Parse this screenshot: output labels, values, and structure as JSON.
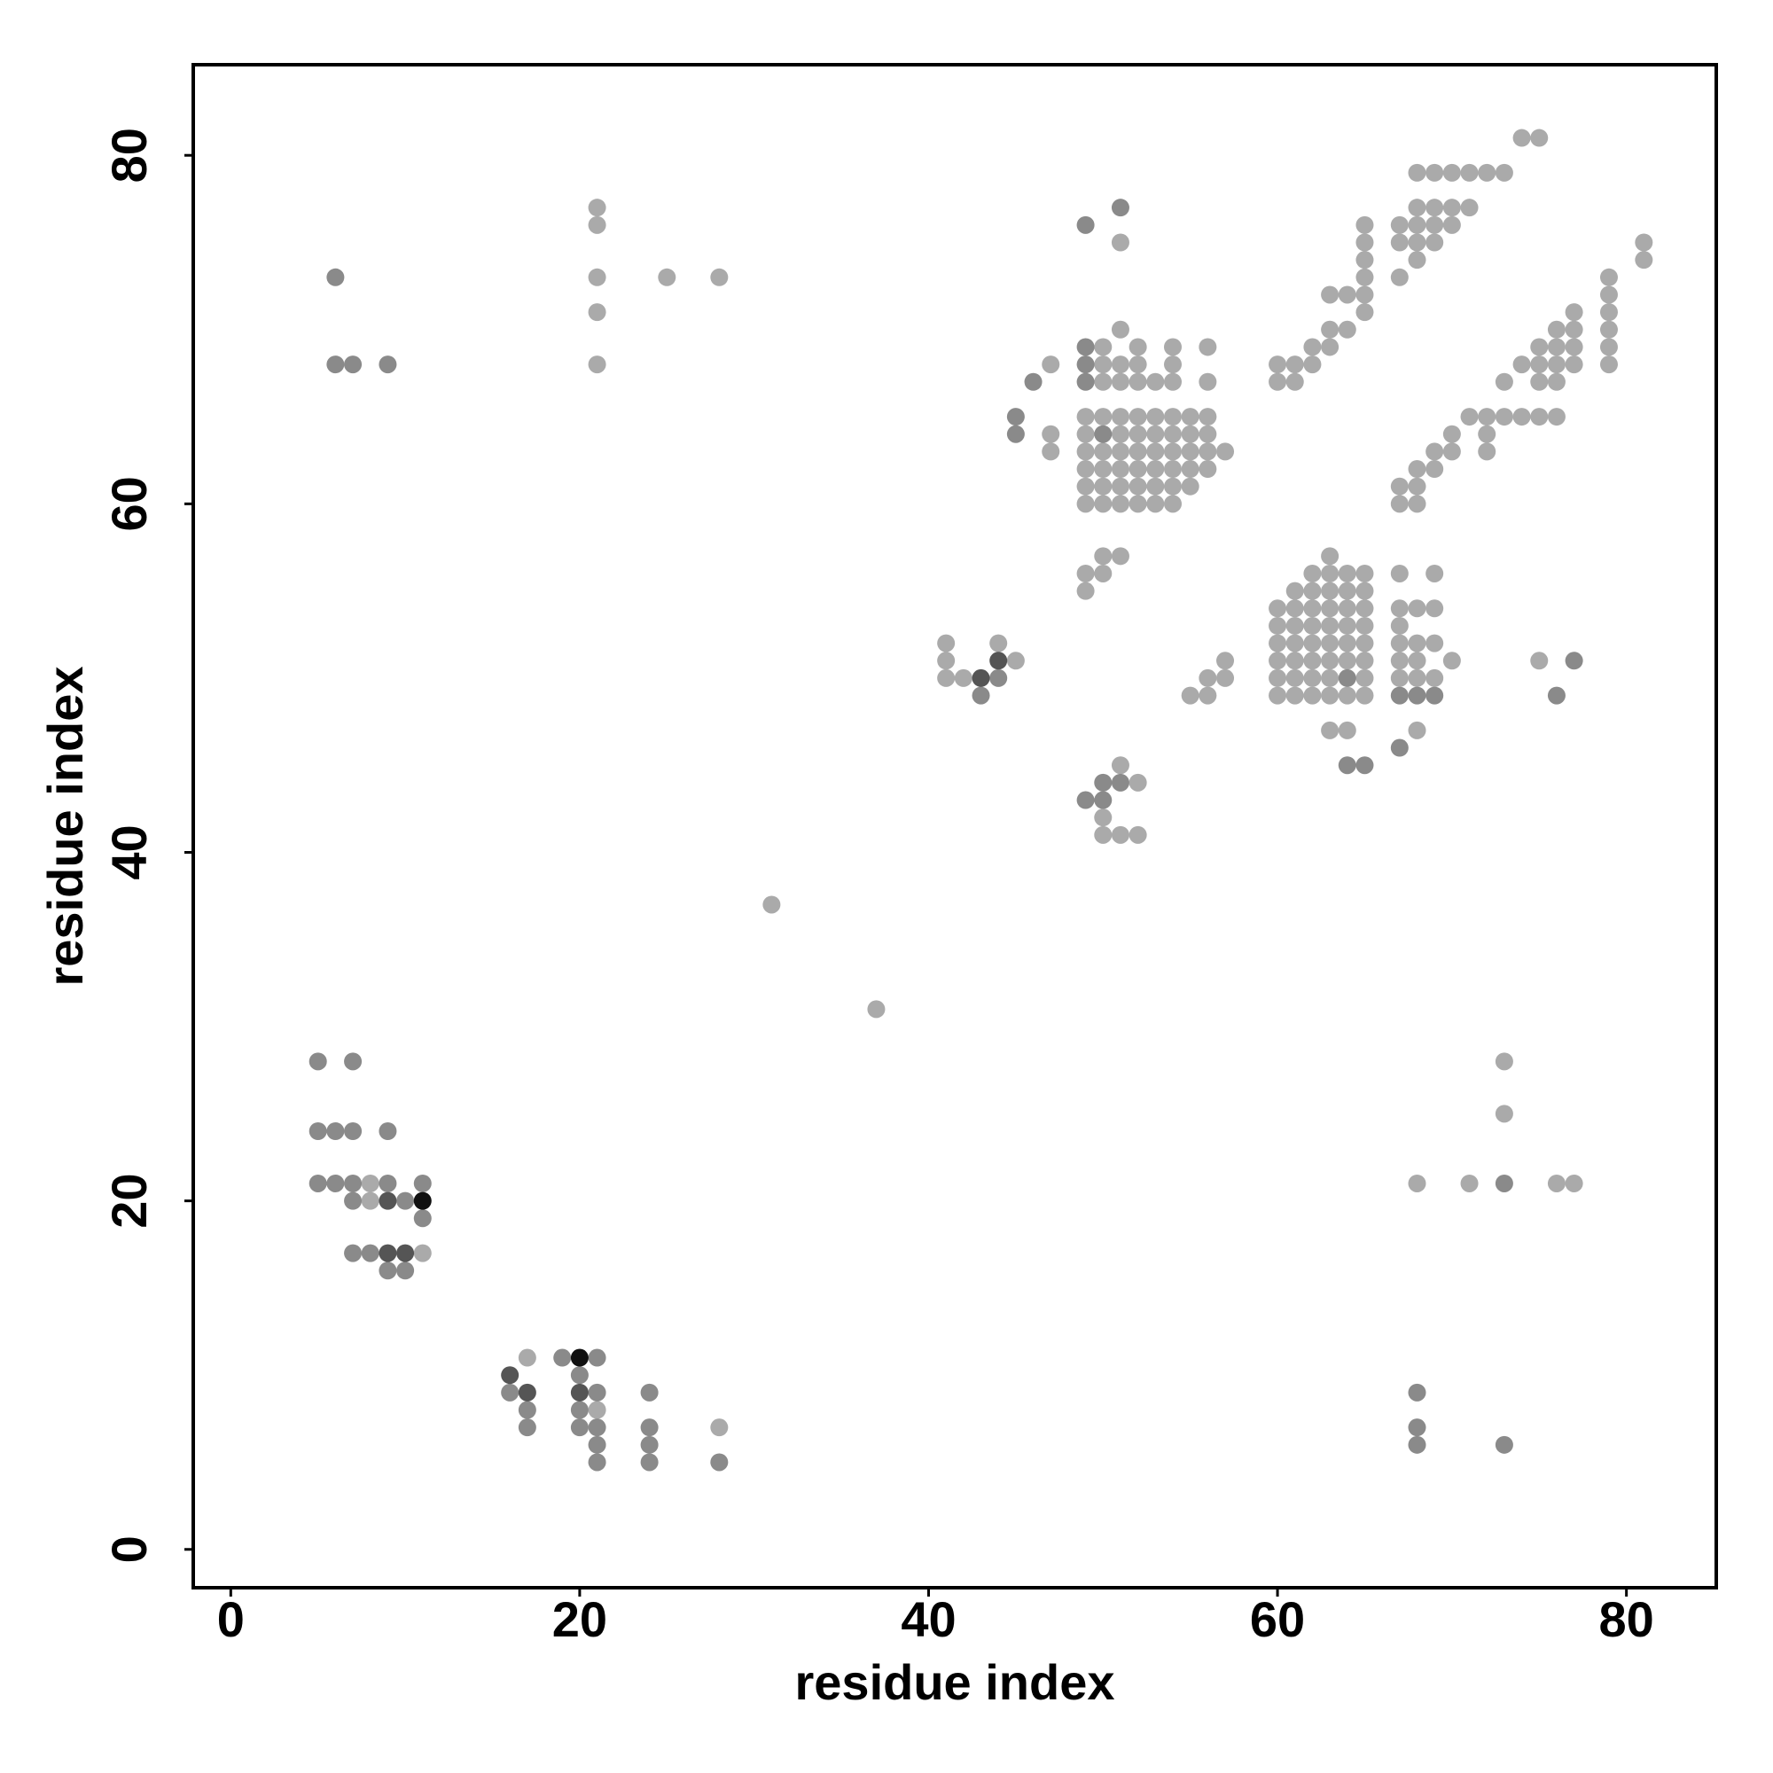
{
  "chart_data": {
    "type": "scatter",
    "xlabel": "residue index",
    "ylabel": "residue index",
    "xlim": [
      -2.15,
      85.15
    ],
    "ylim": [
      -2.2,
      85.2
    ],
    "xticks": [
      0,
      20,
      40,
      60,
      80
    ],
    "yticks": [
      0,
      20,
      40,
      60,
      80
    ],
    "grid": false,
    "series": [
      {
        "color": "#aaaaaa",
        "x": [
          21,
          21,
          21,
          21,
          21,
          25,
          28,
          31,
          37,
          8,
          8,
          11,
          17,
          21,
          28,
          68,
          71,
          76,
          77,
          73,
          73,
          41,
          41,
          41,
          42,
          44,
          45,
          50,
          50,
          51,
          52,
          51,
          52,
          49,
          49,
          50,
          50,
          51,
          55,
          56,
          56,
          57,
          57,
          60,
          60,
          60,
          60,
          60,
          60,
          61,
          61,
          61,
          61,
          61,
          61,
          61,
          62,
          62,
          62,
          62,
          62,
          62,
          62,
          62,
          63,
          63,
          63,
          63,
          63,
          63,
          63,
          63,
          63,
          63,
          64,
          64,
          64,
          64,
          64,
          64,
          64,
          64,
          65,
          65,
          65,
          65,
          65,
          65,
          65,
          65,
          67,
          67,
          67,
          67,
          67,
          67,
          68,
          68,
          68,
          68,
          68,
          69,
          69,
          69,
          69,
          70,
          75,
          49,
          49,
          49,
          49,
          49,
          49,
          50,
          50,
          50,
          50,
          50,
          50,
          50,
          50,
          51,
          51,
          51,
          51,
          51,
          51,
          51,
          51,
          51,
          52,
          52,
          52,
          52,
          52,
          52,
          52,
          52,
          52,
          53,
          53,
          53,
          53,
          53,
          53,
          53,
          54,
          54,
          54,
          54,
          54,
          54,
          54,
          54,
          54,
          55,
          55,
          55,
          55,
          55,
          56,
          56,
          56,
          56,
          56,
          56,
          57,
          47,
          47,
          47,
          51,
          60,
          60,
          61,
          61,
          62,
          62,
          63,
          63,
          63,
          64,
          64,
          65,
          65,
          65,
          65,
          65,
          65,
          67,
          67,
          67,
          68,
          68,
          68,
          68,
          68,
          69,
          69,
          69,
          69,
          70,
          70,
          70,
          71,
          71,
          72,
          73,
          74,
          75,
          67,
          67,
          68,
          68,
          68,
          69,
          69,
          70,
          70,
          71,
          72,
          72,
          72,
          73,
          73,
          74,
          74,
          75,
          75,
          75,
          75,
          76,
          76,
          76,
          76,
          76,
          77,
          77,
          77,
          77,
          79,
          79,
          79,
          79,
          79,
          79,
          81,
          81
        ],
        "y": [
          77,
          76,
          73,
          71,
          68,
          73,
          73,
          37,
          31,
          21,
          20,
          17,
          11,
          8,
          7,
          21,
          21,
          21,
          21,
          25,
          28,
          52,
          51,
          50,
          50,
          52,
          51,
          42,
          41,
          41,
          41,
          45,
          44,
          56,
          55,
          57,
          56,
          57,
          49,
          49,
          50,
          50,
          51,
          49,
          50,
          51,
          52,
          53,
          54,
          49,
          50,
          51,
          52,
          53,
          54,
          55,
          49,
          50,
          51,
          52,
          53,
          54,
          55,
          56,
          47,
          49,
          50,
          51,
          52,
          53,
          54,
          55,
          56,
          57,
          47,
          49,
          51,
          52,
          53,
          54,
          55,
          56,
          49,
          50,
          51,
          52,
          53,
          54,
          55,
          56,
          50,
          51,
          52,
          53,
          54,
          56,
          47,
          50,
          51,
          52,
          54,
          50,
          52,
          54,
          56,
          51,
          51,
          60,
          61,
          62,
          63,
          64,
          65,
          60,
          61,
          62,
          63,
          65,
          67,
          68,
          69,
          60,
          61,
          62,
          63,
          64,
          65,
          67,
          68,
          70,
          60,
          61,
          62,
          63,
          64,
          65,
          67,
          68,
          69,
          60,
          61,
          62,
          63,
          64,
          65,
          67,
          60,
          61,
          62,
          63,
          64,
          65,
          67,
          68,
          69,
          61,
          62,
          63,
          64,
          65,
          62,
          63,
          64,
          65,
          67,
          69,
          63,
          63,
          64,
          68,
          75,
          68,
          67,
          68,
          67,
          68,
          69,
          70,
          69,
          72,
          72,
          70,
          72,
          71,
          73,
          74,
          75,
          76,
          73,
          75,
          76,
          74,
          75,
          76,
          77,
          79,
          75,
          76,
          77,
          79,
          76,
          77,
          79,
          77,
          79,
          79,
          79,
          81,
          81,
          61,
          60,
          61,
          60,
          62,
          62,
          63,
          63,
          64,
          65,
          65,
          64,
          63,
          65,
          67,
          65,
          68,
          65,
          67,
          68,
          69,
          65,
          67,
          68,
          69,
          70,
          68,
          69,
          70,
          71,
          68,
          69,
          70,
          71,
          72,
          73,
          75,
          74
        ]
      },
      {
        "color": "#8a8a8a",
        "x": [
          7,
          9,
          5,
          6,
          5,
          7,
          5,
          6,
          7,
          9,
          11,
          7,
          10,
          11,
          7,
          8,
          9,
          10,
          16,
          19,
          20,
          21,
          24,
          17,
          20,
          21,
          17,
          20,
          21,
          24,
          21,
          24,
          21,
          24,
          28,
          6,
          6,
          7,
          9,
          43,
          44,
          49,
          50,
          50,
          51,
          67,
          68,
          69,
          64,
          65,
          67,
          76,
          77,
          64,
          49,
          49,
          49,
          50,
          45,
          45,
          46,
          51,
          49,
          68,
          68,
          68,
          73,
          73
        ],
        "y": [
          24,
          24,
          24,
          24,
          28,
          28,
          21,
          21,
          21,
          21,
          21,
          20,
          20,
          19,
          17,
          17,
          16,
          16,
          9,
          11,
          10,
          9,
          9,
          8,
          8,
          11,
          7,
          7,
          7,
          7,
          6,
          6,
          5,
          5,
          5,
          73,
          68,
          68,
          68,
          49,
          50,
          43,
          43,
          44,
          44,
          49,
          49,
          49,
          45,
          45,
          46,
          49,
          51,
          50,
          69,
          68,
          67,
          64,
          64,
          65,
          67,
          77,
          76,
          9,
          7,
          6,
          6,
          21
        ]
      },
      {
        "color": "#555555",
        "x": [
          9,
          9,
          10,
          20,
          17,
          16,
          43,
          44
        ],
        "y": [
          20,
          17,
          17,
          9,
          9,
          10,
          50,
          51
        ]
      },
      {
        "color": "#111111",
        "x": [
          11,
          20
        ],
        "y": [
          20,
          11
        ]
      }
    ]
  }
}
